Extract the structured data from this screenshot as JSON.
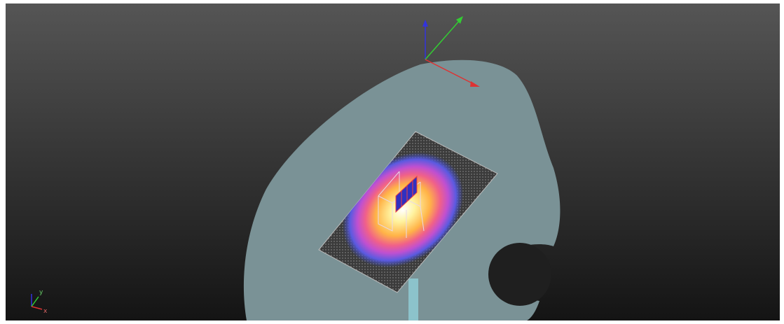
{
  "gizmo": {
    "y_label": "y",
    "x_label": "x"
  }
}
